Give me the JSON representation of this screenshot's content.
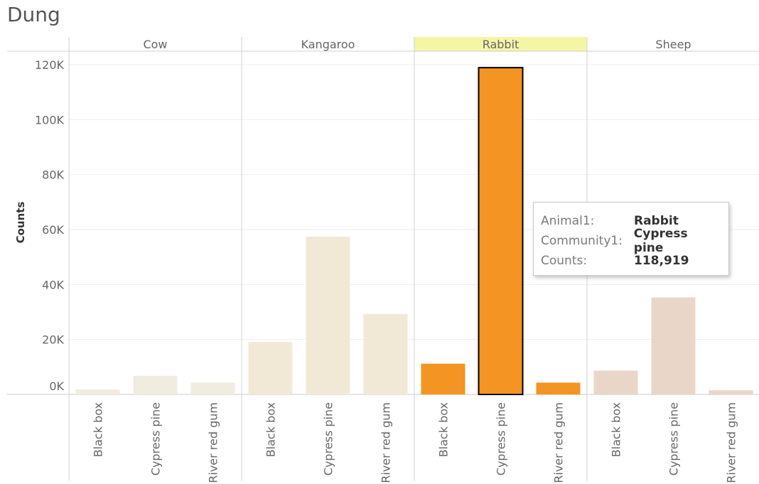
{
  "sheet": {
    "title": "Dung"
  },
  "chart_data": {
    "type": "bar",
    "ylabel": "Counts",
    "ylim": [
      0,
      120000
    ],
    "yticks": [
      0,
      20000,
      40000,
      60000,
      80000,
      100000,
      120000
    ],
    "ytick_labels": [
      "0K",
      "20K",
      "40K",
      "60K",
      "80K",
      "100K",
      "120K"
    ],
    "grid": true,
    "panels": [
      "Cow",
      "Kangaroo",
      "Rabbit",
      "Sheep"
    ],
    "categories": [
      "Black box",
      "Cypress pine",
      "River red gum"
    ],
    "highlighted_panel": "Rabbit",
    "selected": {
      "panel": "Rabbit",
      "category": "Cypress pine"
    },
    "series": [
      {
        "name": "Cow",
        "values": [
          1800,
          6800,
          4300
        ],
        "color": "#f1ece0"
      },
      {
        "name": "Kangaroo",
        "values": [
          19000,
          57400,
          29300
        ],
        "color": "#f2e8d6"
      },
      {
        "name": "Rabbit",
        "values": [
          11200,
          118919,
          4300
        ],
        "color": "#f39423"
      },
      {
        "name": "Sheep",
        "values": [
          8700,
          35300,
          1500
        ],
        "color": "#ead6c8"
      }
    ]
  },
  "tooltip": {
    "rows": [
      {
        "key": "Animal1:",
        "value": "Rabbit"
      },
      {
        "key": "Community1:",
        "value": "Cypress pine"
      },
      {
        "key": "Counts:",
        "value": "118,919"
      }
    ]
  },
  "colors": {
    "header_highlight": "#f5f5a6",
    "axis_text": "#666666",
    "grid": "#eeeeee"
  }
}
